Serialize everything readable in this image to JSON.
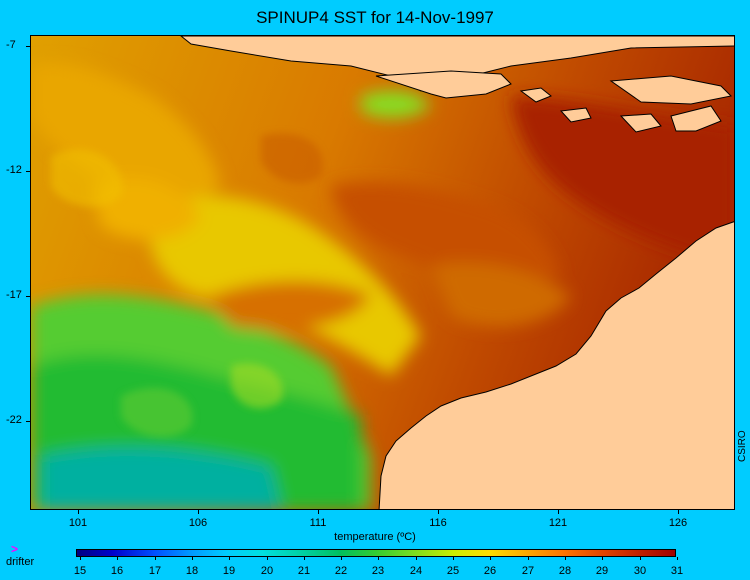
{
  "title": "SPINUP4 SST for 14-Nov-1997",
  "credit": "CSIRO",
  "y_ticks": [
    "-7",
    "-12",
    "-17",
    "-22"
  ],
  "x_ticks": [
    "101",
    "106",
    "111",
    "116",
    "121",
    "126"
  ],
  "colorbar": {
    "label": "temperature (ºC)",
    "values": [
      "15",
      "16",
      "17",
      "18",
      "19",
      "20",
      "21",
      "22",
      "23",
      "24",
      "25",
      "26",
      "27",
      "28",
      "29",
      "30",
      "31"
    ]
  },
  "legend": {
    "drifter_icon": "drifter-arrow-icon",
    "drifter_label": "drifter"
  },
  "colors": {
    "background": "#00ccff",
    "land": "#ffcc99",
    "warm": "#b42800",
    "mid": "#e89a00",
    "cool": "#33cc33",
    "cold": "#00b0a0"
  }
}
